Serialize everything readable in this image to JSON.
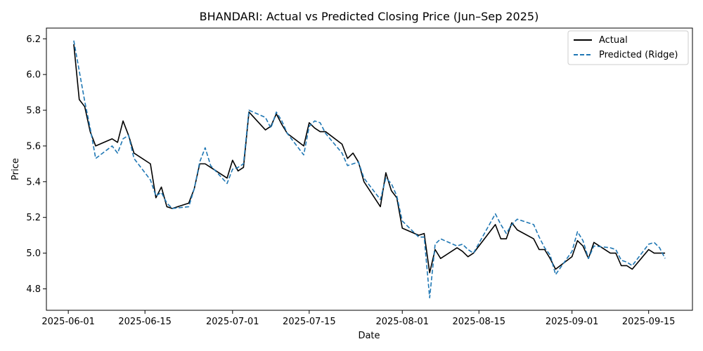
{
  "chart_data": {
    "type": "line",
    "title": "BHANDARI: Actual vs Predicted Closing Price (Jun–Sep 2025)",
    "xlabel": "Date",
    "ylabel": "Price",
    "xlim": [
      "2025-05-28",
      "2025-09-23"
    ],
    "ylim": [
      4.68,
      6.26
    ],
    "x_ticks": [
      "2025-06-01",
      "2025-06-15",
      "2025-07-01",
      "2025-07-15",
      "2025-08-01",
      "2025-08-15",
      "2025-09-01",
      "2025-09-15"
    ],
    "y_ticks": [
      "4.8",
      "5.0",
      "5.2",
      "5.4",
      "5.6",
      "5.8",
      "6.0",
      "6.2"
    ],
    "grid": false,
    "legend": "top-right",
    "colors": {
      "actual": "#000000",
      "predicted": "#1f77b4"
    },
    "x": [
      "2025-06-02",
      "2025-06-03",
      "2025-06-04",
      "2025-06-05",
      "2025-06-06",
      "2025-06-09",
      "2025-06-10",
      "2025-06-11",
      "2025-06-12",
      "2025-06-13",
      "2025-06-16",
      "2025-06-17",
      "2025-06-18",
      "2025-06-19",
      "2025-06-20",
      "2025-06-23",
      "2025-06-24",
      "2025-06-25",
      "2025-06-26",
      "2025-06-27",
      "2025-06-30",
      "2025-07-01",
      "2025-07-02",
      "2025-07-03",
      "2025-07-04",
      "2025-07-07",
      "2025-07-08",
      "2025-07-09",
      "2025-07-10",
      "2025-07-11",
      "2025-07-14",
      "2025-07-15",
      "2025-07-16",
      "2025-07-17",
      "2025-07-18",
      "2025-07-21",
      "2025-07-22",
      "2025-07-23",
      "2025-07-24",
      "2025-07-25",
      "2025-07-28",
      "2025-07-29",
      "2025-07-30",
      "2025-07-31",
      "2025-08-01",
      "2025-08-04",
      "2025-08-05",
      "2025-08-06",
      "2025-08-07",
      "2025-08-08",
      "2025-08-11",
      "2025-08-12",
      "2025-08-13",
      "2025-08-14",
      "2025-08-18",
      "2025-08-19",
      "2025-08-20",
      "2025-08-21",
      "2025-08-22",
      "2025-08-25",
      "2025-08-26",
      "2025-08-27",
      "2025-08-28",
      "2025-08-29",
      "2025-09-01",
      "2025-09-02",
      "2025-09-03",
      "2025-09-04",
      "2025-09-05",
      "2025-09-08",
      "2025-09-09",
      "2025-09-10",
      "2025-09-11",
      "2025-09-12",
      "2025-09-15",
      "2025-09-16",
      "2025-09-17",
      "2025-09-18"
    ],
    "series": [
      {
        "name": "Actual",
        "values": [
          6.17,
          5.86,
          5.82,
          5.68,
          5.6,
          5.64,
          5.62,
          5.74,
          5.66,
          5.56,
          5.5,
          5.31,
          5.37,
          5.26,
          5.25,
          5.28,
          5.36,
          5.5,
          5.5,
          5.48,
          5.42,
          5.52,
          5.46,
          5.48,
          5.79,
          5.69,
          5.71,
          5.78,
          5.72,
          5.67,
          5.6,
          5.73,
          5.7,
          5.68,
          5.68,
          5.61,
          5.53,
          5.56,
          5.51,
          5.4,
          5.26,
          5.45,
          5.35,
          5.31,
          5.14,
          5.1,
          5.11,
          4.89,
          5.02,
          4.97,
          5.03,
          5.01,
          4.98,
          5.0,
          5.16,
          5.08,
          5.08,
          5.17,
          5.13,
          5.08,
          5.02,
          5.02,
          4.97,
          4.91,
          4.98,
          5.07,
          5.04,
          4.97,
          5.06,
          5.0,
          5.0,
          4.93,
          4.93,
          4.91,
          5.02,
          5.0,
          5.0,
          5.0
        ]
      },
      {
        "name": "Predicted (Ridge)",
        "values": [
          6.19,
          6.02,
          5.85,
          5.7,
          5.53,
          5.6,
          5.56,
          5.64,
          5.66,
          5.53,
          5.41,
          5.32,
          5.34,
          5.28,
          5.25,
          5.26,
          5.36,
          5.51,
          5.59,
          5.49,
          5.39,
          5.47,
          5.48,
          5.5,
          5.8,
          5.76,
          5.7,
          5.79,
          5.74,
          5.67,
          5.55,
          5.71,
          5.74,
          5.73,
          5.67,
          5.56,
          5.49,
          5.5,
          5.51,
          5.42,
          5.3,
          5.42,
          5.39,
          5.32,
          5.18,
          5.09,
          5.09,
          4.75,
          5.05,
          5.08,
          5.04,
          5.05,
          5.02,
          5.0,
          5.22,
          5.16,
          5.11,
          5.16,
          5.19,
          5.16,
          5.09,
          5.03,
          4.99,
          4.88,
          5.01,
          5.12,
          5.07,
          4.97,
          5.04,
          5.03,
          5.02,
          4.96,
          4.95,
          4.93,
          5.05,
          5.06,
          5.03,
          4.97
        ]
      }
    ]
  }
}
